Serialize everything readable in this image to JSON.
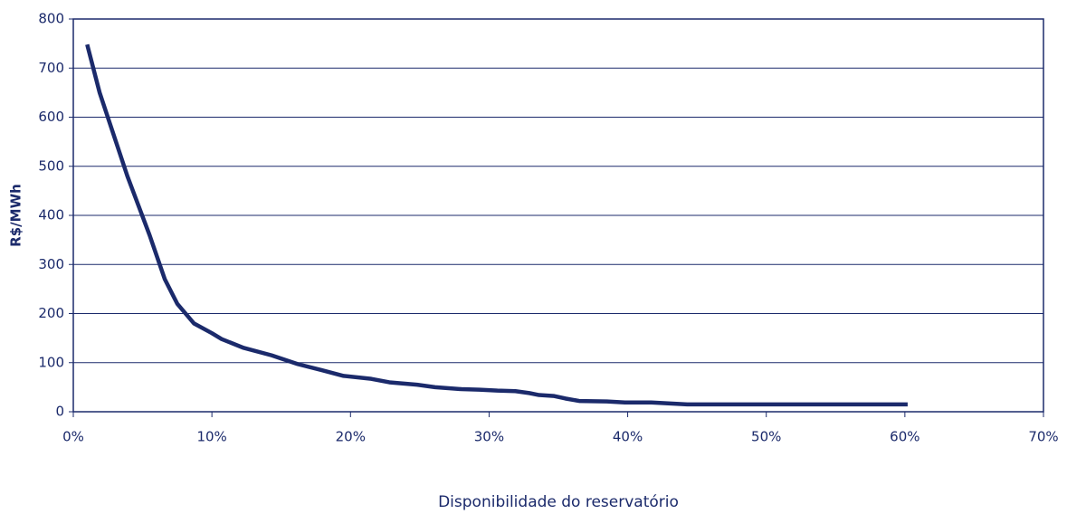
{
  "chart_data": {
    "type": "line",
    "y_label": "R$/MWh",
    "x_label": "Disponibilidade do reservatório",
    "x": [
      1,
      1.9,
      2.9,
      3.9,
      4.5,
      5.5,
      6.6,
      7.5,
      8.7,
      10,
      10.7,
      12.3,
      14.3,
      16.2,
      17.9,
      19.5,
      21.5,
      22.8,
      24.8,
      26.1,
      28,
      29.3,
      30.6,
      31.9,
      32.9,
      33.6,
      34.7,
      35.5,
      36.5,
      38.5,
      39.8,
      41.7,
      44.3,
      60.2
    ],
    "series": [
      {
        "name": "R$/MWh",
        "color": "#1b2a6b",
        "values": [
          748,
          650,
          565,
          480,
          435,
          360,
          270,
          220,
          180,
          160,
          148,
          130,
          115,
          97,
          85,
          73,
          67,
          60,
          55,
          50,
          46,
          45,
          43,
          42,
          38,
          34,
          32,
          27,
          22,
          21,
          19,
          19,
          15,
          15
        ]
      }
    ],
    "xlim": [
      0,
      70
    ],
    "xticks": [
      {
        "value": 0,
        "label": "0%"
      },
      {
        "value": 10,
        "label": "10%"
      },
      {
        "value": 20,
        "label": "20%"
      },
      {
        "value": 30,
        "label": "30%"
      },
      {
        "value": 40,
        "label": "40%"
      },
      {
        "value": 50,
        "label": "50%"
      },
      {
        "value": 60,
        "label": "60%"
      },
      {
        "value": 70,
        "label": "70%"
      }
    ],
    "ylim": [
      0,
      800
    ],
    "yticks": [
      0,
      100,
      200,
      300,
      400,
      500,
      600,
      700,
      800
    ],
    "grid": true
  }
}
